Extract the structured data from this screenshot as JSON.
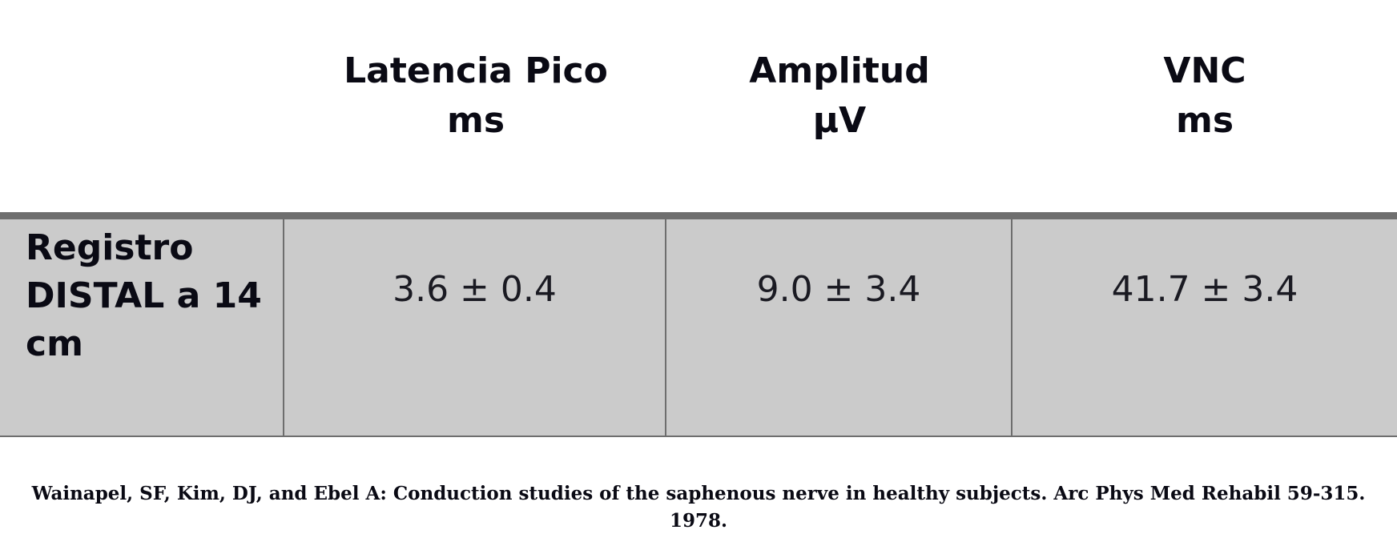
{
  "table": {
    "headers": [
      {
        "line1": "Latencia Pico",
        "line2": "ms"
      },
      {
        "line1": "Amplitud",
        "line2": "µV"
      },
      {
        "line1": "VNC",
        "line2": "ms"
      }
    ],
    "rows": [
      {
        "label": "Registro DISTAL a 14 cm",
        "values": [
          "3.6 ± 0.4",
          "9.0 ± 3.4",
          "41.7 ± 3.4"
        ]
      }
    ]
  },
  "citation": "Wainapel, SF, Kim, DJ, and Ebel A: Conduction studies of the saphenous nerve in healthy subjects. Arc Phys Med Rehabil 59-315. 1978."
}
